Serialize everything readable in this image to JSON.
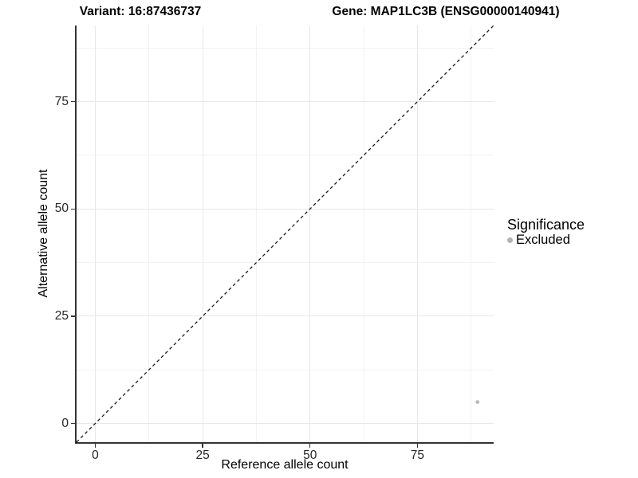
{
  "chart_data": {
    "type": "scatter",
    "title_left": "Variant: 16:87436737",
    "title_right": "Gene: MAP1LC3B (ENSG00000140941)",
    "xlabel": "Reference allele count",
    "ylabel": "Alternative allele count",
    "x_range": [
      -4.35,
      92.75
    ],
    "y_range": [
      -4.35,
      92.75
    ],
    "x_ticks": [
      0,
      25,
      50,
      75
    ],
    "y_ticks": [
      0,
      25,
      50,
      75
    ],
    "x_minor_ticks": [
      12.5,
      37.5,
      62.5,
      87.5
    ],
    "y_minor_ticks": [
      12.5,
      37.5,
      62.5,
      87.5
    ],
    "grid": true,
    "diagonal": {
      "style": "dashed",
      "x1": -4.35,
      "y1": -4.35,
      "x2": 92.75,
      "y2": 92.75
    },
    "series": [
      {
        "name": "Excluded",
        "color": "#b9b9b9",
        "point_radius": 2.4,
        "points": [
          {
            "x": 89,
            "y": 5
          }
        ]
      }
    ],
    "legend": {
      "position": "right",
      "title": "Significance",
      "items": [
        {
          "label": "Excluded",
          "color": "#b3b3b3"
        }
      ]
    },
    "colors": {
      "background": "#ffffff",
      "grid_major": "#e8e8e8",
      "grid_minor": "#f2f2f2",
      "axis_line": "#333333",
      "diagonal_line": "#1a1a1a",
      "tick_text": "#262626"
    }
  }
}
